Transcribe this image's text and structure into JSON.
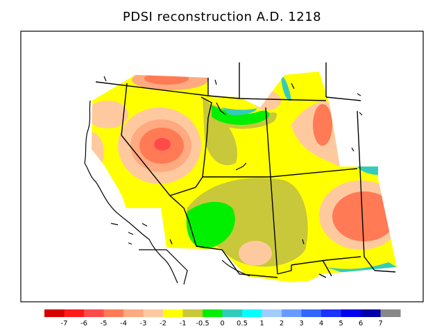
{
  "title": "PDSI reconstruction A.D. 1218",
  "legend": {
    "colors": [
      "#d60000",
      "#ff1a1a",
      "#ff4a4a",
      "#ff7a55",
      "#ffaa80",
      "#ffc9a0",
      "#ffff00",
      "#c8c83a",
      "#00f000",
      "#33ccbb",
      "#00ffff",
      "#a0ccff",
      "#6a9aff",
      "#3366ff",
      "#1a33ff",
      "#0000ee",
      "#0000aa",
      "#888888"
    ],
    "ticks": [
      "-7",
      "-6",
      "-5",
      "-4",
      "-3",
      "-2",
      "-1",
      "-0.5",
      "0",
      "0.5",
      "1",
      "2",
      "3",
      "4",
      "5",
      "6",
      "7"
    ]
  }
}
